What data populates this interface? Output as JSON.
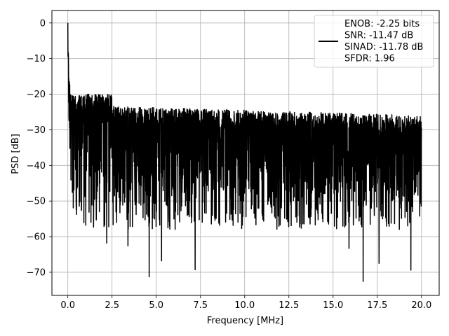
{
  "chart_data": {
    "type": "line",
    "xlabel": "Frequency [MHz]",
    "ylabel": "PSD [dB]",
    "xlim": [
      -0.9,
      21.0
    ],
    "ylim": [
      -76.5,
      3.5
    ],
    "x_ticks": [
      0.0,
      2.5,
      5.0,
      7.5,
      10.0,
      12.5,
      15.0,
      17.5,
      20.0
    ],
    "x_tick_labels": [
      "0.0",
      "2.5",
      "5.0",
      "7.5",
      "10.0",
      "12.5",
      "15.0",
      "17.5",
      "20.0"
    ],
    "y_ticks": [
      0,
      -10,
      -20,
      -30,
      -40,
      -50,
      -60,
      -70
    ],
    "y_tick_labels": [
      "0",
      "−10",
      "−20",
      "−30",
      "−40",
      "−50",
      "−60",
      "−70"
    ],
    "grid": true,
    "legend_position": "top-right",
    "series": [
      {
        "name": "ENOB: -2.25 bits\nSNR: -11.47 dB\nSINAD: -11.78 dB\nSFDR: 1.96",
        "color": "#000000",
        "x_range": [
          0.0,
          20.0
        ],
        "peak": {
          "x": 0.0,
          "y": 0.0
        },
        "noise_band": {
          "upper_near_dc": -20,
          "upper_typical": -23,
          "upper_at_end": -26,
          "lower_typical": -50,
          "deepest_notches": [
            {
              "x": 4.6,
              "y": -71.3
            },
            {
              "x": 16.7,
              "y": -72.6
            },
            {
              "x": 7.2,
              "y": -69.3
            },
            {
              "x": 19.4,
              "y": -69.4
            },
            {
              "x": 3.4,
              "y": -62.6
            },
            {
              "x": 5.3,
              "y": -66.8
            },
            {
              "x": 17.6,
              "y": -67.5
            },
            {
              "x": 2.2,
              "y": -61.8
            },
            {
              "x": 15.9,
              "y": -63.3
            }
          ]
        }
      }
    ]
  }
}
